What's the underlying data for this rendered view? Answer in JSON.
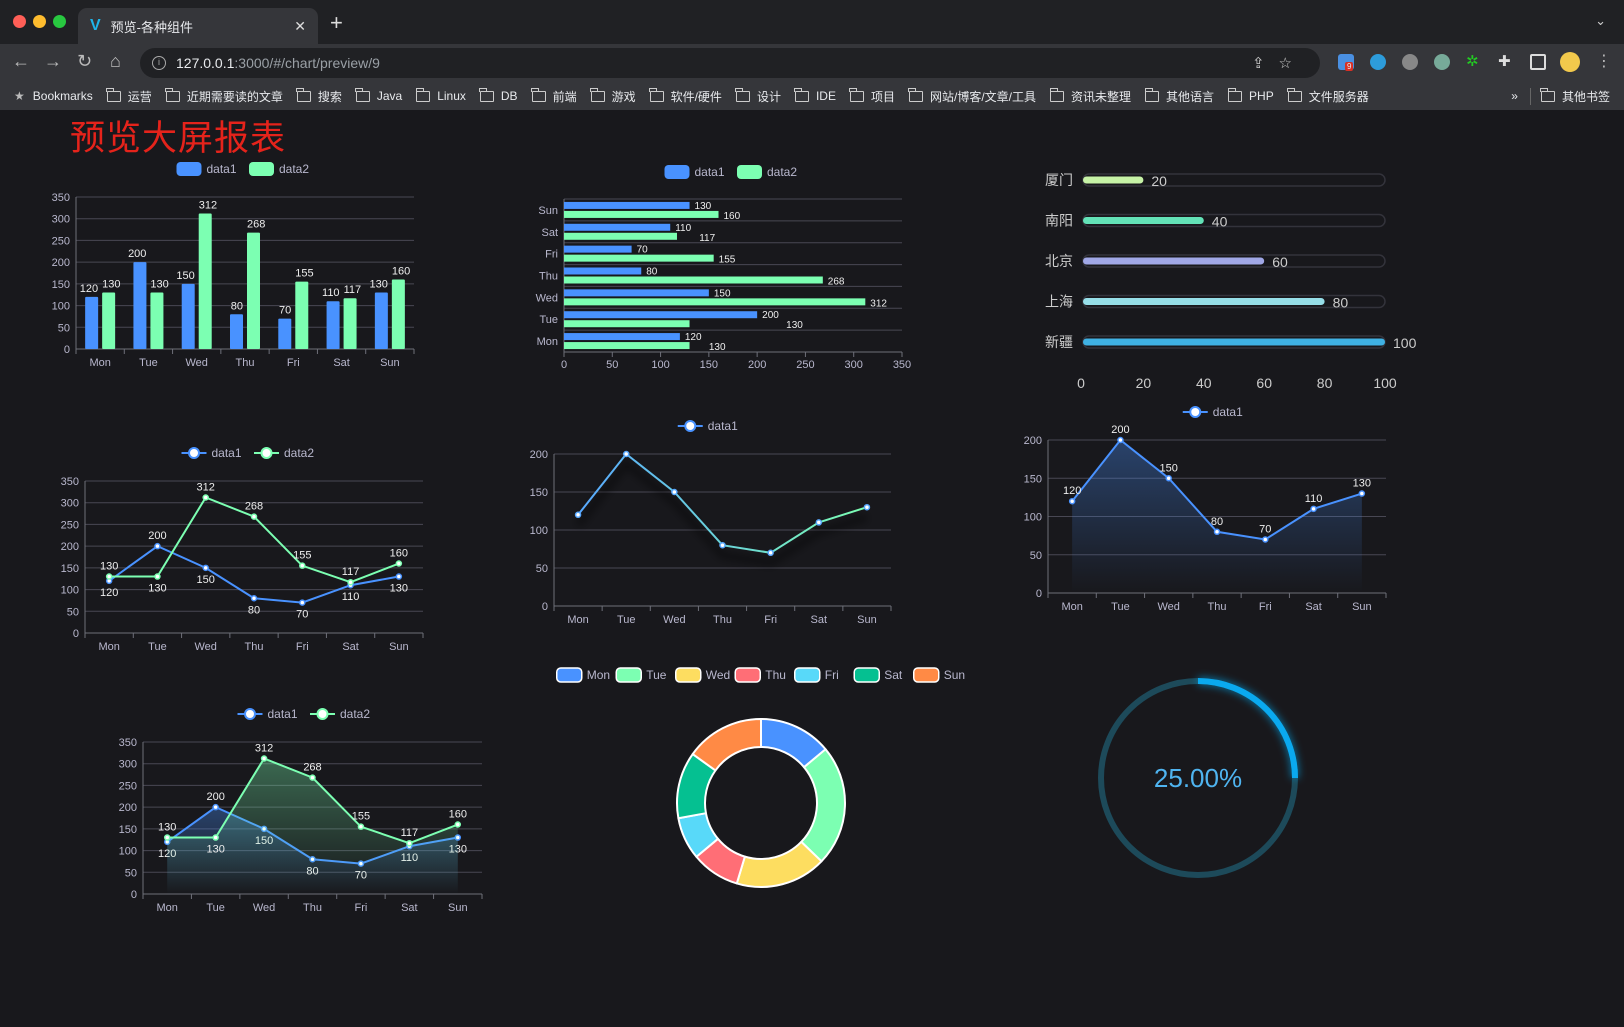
{
  "browser": {
    "tab_title": "预览-各种组件",
    "url_host": "127.0.0.1",
    "url_path": ":3000/#/chart/preview/9",
    "bookmarks": [
      "Bookmarks",
      "运营",
      "近期需要读的文章",
      "搜索",
      "Java",
      "Linux",
      "DB",
      "前端",
      "游戏",
      "软件/硬件",
      "设计",
      "IDE",
      "项目",
      "网站/博客/文章/工具",
      "资讯未整理",
      "其他语言",
      "PHP",
      "文件服务器"
    ],
    "overflow_label": "»",
    "other_bookmarks": "其他书签",
    "extension_badge": "9"
  },
  "page_title": "预览大屏报表",
  "colors": {
    "blue": "#4992ff",
    "green": "#7cffb2",
    "yellow": "#fddd60",
    "red": "#ff6e76",
    "cyan": "#58d9f9",
    "teal": "#05c091",
    "orange": "#ff8a45",
    "gauge": "#0aa9ef",
    "title": "#e5231b"
  },
  "chart_data": [
    {
      "type": "bar",
      "orientation": "vertical",
      "categories": [
        "Mon",
        "Tue",
        "Wed",
        "Thu",
        "Fri",
        "Sat",
        "Sun"
      ],
      "series": [
        {
          "name": "data1",
          "values": [
            120,
            200,
            150,
            80,
            70,
            110,
            130
          ]
        },
        {
          "name": "data2",
          "values": [
            130,
            130,
            312,
            268,
            155,
            117,
            160
          ]
        }
      ],
      "ylim": [
        0,
        350
      ],
      "yticks": [
        0,
        50,
        100,
        150,
        200,
        250,
        300,
        350
      ],
      "grid": true,
      "legend": "top-center",
      "data_labels": true
    },
    {
      "type": "bar",
      "orientation": "horizontal",
      "categories": [
        "Mon",
        "Tue",
        "Wed",
        "Thu",
        "Fri",
        "Sat",
        "Sun"
      ],
      "series": [
        {
          "name": "data1",
          "values": [
            120,
            200,
            150,
            80,
            70,
            110,
            130
          ]
        },
        {
          "name": "data2",
          "values": [
            130,
            130,
            312,
            268,
            155,
            117,
            160
          ]
        }
      ],
      "xlim": [
        0,
        350
      ],
      "xticks": [
        0,
        50,
        100,
        150,
        200,
        250,
        300,
        350
      ],
      "grid": true,
      "legend": "top-center",
      "data_labels": true
    },
    {
      "type": "bar",
      "orientation": "progress",
      "categories": [
        "厦门",
        "南阳",
        "北京",
        "上海",
        "新疆"
      ],
      "values": [
        20,
        40,
        60,
        80,
        100
      ],
      "colors": [
        "#c6f2a6",
        "#63e2b7",
        "#a0a7e6",
        "#96dee8",
        "#3fb1e3"
      ],
      "xlim": [
        0,
        100
      ],
      "xticks": [
        0,
        20,
        40,
        60,
        80,
        100
      ]
    },
    {
      "type": "line",
      "categories": [
        "Mon",
        "Tue",
        "Wed",
        "Thu",
        "Fri",
        "Sat",
        "Sun"
      ],
      "series": [
        {
          "name": "data1",
          "values": [
            120,
            200,
            150,
            80,
            70,
            110,
            130
          ]
        },
        {
          "name": "data2",
          "values": [
            130,
            130,
            312,
            268,
            155,
            117,
            160
          ]
        }
      ],
      "ylim": [
        0,
        350
      ],
      "yticks": [
        0,
        50,
        100,
        150,
        200,
        250,
        300,
        350
      ],
      "grid": true,
      "legend": "top-center",
      "data_labels": true
    },
    {
      "type": "line",
      "categories": [
        "Mon",
        "Tue",
        "Wed",
        "Thu",
        "Fri",
        "Sat",
        "Sun"
      ],
      "series": [
        {
          "name": "data1",
          "values": [
            120,
            200,
            150,
            80,
            70,
            110,
            130
          ]
        }
      ],
      "ylim": [
        0,
        200
      ],
      "yticks": [
        0,
        50,
        100,
        150,
        200
      ],
      "grid": true,
      "legend": "top-center",
      "data_labels": false,
      "gradient_line": true
    },
    {
      "type": "area",
      "categories": [
        "Mon",
        "Tue",
        "Wed",
        "Thu",
        "Fri",
        "Sat",
        "Sun"
      ],
      "series": [
        {
          "name": "data1",
          "values": [
            120,
            200,
            150,
            80,
            70,
            110,
            130
          ]
        }
      ],
      "ylim": [
        0,
        200
      ],
      "yticks": [
        0,
        50,
        100,
        150,
        200
      ],
      "grid": true,
      "legend": "top-center",
      "data_labels": true
    },
    {
      "type": "area",
      "categories": [
        "Mon",
        "Tue",
        "Wed",
        "Thu",
        "Fri",
        "Sat",
        "Sun"
      ],
      "series": [
        {
          "name": "data1",
          "values": [
            120,
            200,
            150,
            80,
            70,
            110,
            130
          ]
        },
        {
          "name": "data2",
          "values": [
            130,
            130,
            312,
            268,
            155,
            117,
            160
          ]
        }
      ],
      "ylim": [
        0,
        350
      ],
      "yticks": [
        0,
        50,
        100,
        150,
        200,
        250,
        300,
        350
      ],
      "grid": true,
      "legend": "top-center",
      "data_labels": true
    },
    {
      "type": "pie",
      "donut": true,
      "categories": [
        "Mon",
        "Tue",
        "Wed",
        "Thu",
        "Fri",
        "Sat",
        "Sun"
      ],
      "values": [
        120,
        200,
        150,
        80,
        70,
        110,
        130
      ],
      "legend": "top-center"
    },
    {
      "type": "gauge",
      "value": 25,
      "label": "25.00%"
    }
  ]
}
